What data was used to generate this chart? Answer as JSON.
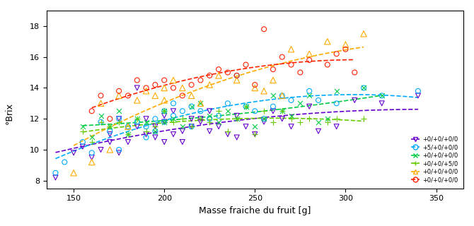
{
  "title": "",
  "xlabel": "Masse fraiche du fruit [g]",
  "ylabel": "°Brix",
  "xlim": [
    135,
    365
  ],
  "ylim": [
    7.5,
    19
  ],
  "xticks": [
    150,
    200,
    250,
    300,
    350
  ],
  "yticks": [
    8,
    10,
    12,
    14,
    16,
    18
  ],
  "series": [
    {
      "label": "+0/+0/+0/0",
      "color": "#6600cc",
      "marker": "v",
      "marker_size": 5,
      "x": [
        140,
        150,
        155,
        160,
        165,
        170,
        170,
        175,
        175,
        180,
        185,
        185,
        190,
        190,
        195,
        195,
        200,
        200,
        200,
        205,
        205,
        210,
        210,
        215,
        215,
        220,
        220,
        225,
        225,
        230,
        235,
        240,
        240,
        245,
        250,
        255,
        260,
        265,
        270,
        280,
        285,
        295,
        305,
        320,
        340
      ],
      "y": [
        8.2,
        9.8,
        10.2,
        9.5,
        10.0,
        10.5,
        11.0,
        9.8,
        12.0,
        10.5,
        11.5,
        14.0,
        12.0,
        11.0,
        11.5,
        10.8,
        12.2,
        11.8,
        10.5,
        12.5,
        11.0,
        10.5,
        11.2,
        12.0,
        11.5,
        11.8,
        12.0,
        12.5,
        11.2,
        11.5,
        11.0,
        12.2,
        10.8,
        11.5,
        11.0,
        11.8,
        12.5,
        12.0,
        11.5,
        12.8,
        11.2,
        11.5,
        13.2,
        13.0,
        13.5
      ]
    },
    {
      "label": "+5/+0/+0/0",
      "color": "#00aaff",
      "marker": "o",
      "marker_size": 5,
      "x": [
        140,
        145,
        155,
        160,
        165,
        170,
        175,
        175,
        180,
        185,
        190,
        190,
        195,
        195,
        200,
        200,
        205,
        205,
        210,
        215,
        215,
        220,
        225,
        230,
        235,
        240,
        245,
        250,
        255,
        260,
        265,
        270,
        280,
        285,
        295,
        310,
        320,
        340
      ],
      "y": [
        8.5,
        9.2,
        10.5,
        9.8,
        11.8,
        11.2,
        10.0,
        12.0,
        11.5,
        11.8,
        11.5,
        10.8,
        12.0,
        11.2,
        12.5,
        11.8,
        13.0,
        12.2,
        12.5,
        11.5,
        12.8,
        12.5,
        12.0,
        12.2,
        13.0,
        14.8,
        12.8,
        12.5,
        12.0,
        12.8,
        13.5,
        13.2,
        13.8,
        13.2,
        13.0,
        14.0,
        13.5,
        13.8
      ]
    },
    {
      "label": "+0/+0/+0/0",
      "color": "#00cc44",
      "marker": "x",
      "marker_size": 5,
      "x": [
        155,
        160,
        165,
        170,
        175,
        180,
        185,
        190,
        195,
        200,
        200,
        205,
        210,
        215,
        220,
        225,
        230,
        235,
        240,
        245,
        250,
        255,
        260,
        265,
        270,
        275,
        280,
        285,
        290,
        295,
        310,
        320
      ],
      "y": [
        11.5,
        10.8,
        12.2,
        11.5,
        12.5,
        11.0,
        12.0,
        11.8,
        11.2,
        12.5,
        11.8,
        12.0,
        11.5,
        12.8,
        13.0,
        12.2,
        11.8,
        12.5,
        12.0,
        12.8,
        11.5,
        12.0,
        13.5,
        12.5,
        12.2,
        13.0,
        13.5,
        11.8,
        12.0,
        13.8,
        14.0,
        13.5
      ]
    },
    {
      "label": "+0/+0/+5/0",
      "color": "#66cc00",
      "marker": "+",
      "marker_size": 6,
      "x": [
        155,
        160,
        165,
        170,
        175,
        180,
        185,
        190,
        195,
        200,
        205,
        210,
        215,
        220,
        225,
        230,
        235,
        240,
        245,
        250,
        255,
        260,
        265,
        270,
        275,
        280,
        290,
        295,
        310
      ],
      "y": [
        11.2,
        10.5,
        11.8,
        11.5,
        11.8,
        11.0,
        12.0,
        11.2,
        11.5,
        12.5,
        11.8,
        12.0,
        11.5,
        12.0,
        11.8,
        12.5,
        11.2,
        12.0,
        12.8,
        11.0,
        12.5,
        11.8,
        12.5,
        12.0,
        11.8,
        12.0,
        11.8,
        12.0,
        12.0
      ]
    },
    {
      "label": "+0/+0/+0/0",
      "color": "#ffaa00",
      "marker": "^",
      "marker_size": 6,
      "x": [
        150,
        160,
        165,
        170,
        175,
        180,
        185,
        190,
        195,
        200,
        200,
        205,
        210,
        215,
        220,
        225,
        230,
        240,
        250,
        255,
        260,
        265,
        270,
        280,
        290,
        300,
        310
      ],
      "y": [
        8.5,
        9.2,
        13.0,
        10.0,
        13.5,
        11.5,
        13.2,
        13.8,
        13.5,
        14.0,
        13.2,
        14.5,
        14.0,
        13.5,
        13.0,
        14.2,
        14.8,
        14.5,
        14.0,
        13.8,
        14.5,
        13.5,
        16.5,
        16.2,
        17.0,
        16.8,
        17.5
      ]
    },
    {
      "label": "+0/+0/+0/0",
      "color": "#ff2200",
      "marker": "o",
      "marker_size": 5,
      "x": [
        160,
        165,
        170,
        175,
        180,
        185,
        190,
        195,
        200,
        205,
        210,
        215,
        220,
        225,
        230,
        235,
        240,
        245,
        250,
        255,
        260,
        265,
        270,
        275,
        280,
        290,
        295,
        300,
        305
      ],
      "y": [
        12.5,
        13.5,
        12.0,
        13.8,
        13.5,
        14.5,
        14.0,
        14.2,
        14.5,
        14.0,
        13.5,
        14.2,
        14.5,
        14.8,
        15.2,
        15.0,
        14.8,
        15.5,
        14.2,
        17.8,
        15.2,
        16.0,
        15.5,
        15.0,
        15.8,
        15.5,
        16.2,
        16.5,
        15.0
      ]
    }
  ],
  "legend_labels": [
    "+0/+0/+0/0",
    "+5/+0/+0/0",
    "+0/+0/+0/0",
    "+0/+0/+5/0",
    "+0/+0/+0/0",
    "+0/+0/+0/0"
  ],
  "trend_line_colors": [
    "#6600cc",
    "#00aaff",
    "#00cc44",
    "#66cc00",
    "#ffaa00",
    "#ff2200"
  ],
  "figsize": [
    6.7,
    3.2
  ],
  "dpi": 100
}
